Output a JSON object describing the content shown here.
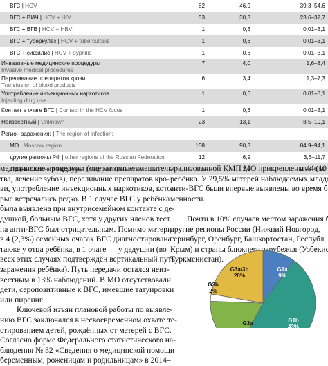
{
  "table": {
    "rows": [
      {
        "ru": "ВГС",
        "en": "HCV",
        "n": "82",
        "p": "46,9",
        "ci": "39,3–54,6",
        "shade": false,
        "indent": true
      },
      {
        "ru": "ВГС + ВИЧ",
        "en": "HCV + HIV",
        "n": "53",
        "p": "30,3",
        "ci": "23,6–37,7",
        "shade": true,
        "indent": true
      },
      {
        "ru": "ВГС + ВГВ",
        "en": "HCV + HBV",
        "n": "1",
        "p": "0,6",
        "ci": "0,01–3,1",
        "shade": false,
        "indent": true
      },
      {
        "ru": "ВГС + туберкулёз",
        "en": "HCV + tuberculosis",
        "n": "1",
        "p": "0,6",
        "ci": "0,01–3,1",
        "shade": true,
        "indent": true
      },
      {
        "ru": "ВГС + сифилис",
        "en": "HCV + syphilis",
        "n": "1",
        "p": "0,6",
        "ci": "0,01–3,1",
        "shade": false,
        "indent": true
      },
      {
        "ru": "Инвазивные медицинские процедуры",
        "en": "Invasive medical procedures",
        "n": "7",
        "p": "4,0",
        "ci": "1,6–8,4",
        "shade": true,
        "indent": false,
        "two": true
      },
      {
        "ru": "Переливание препаратов крови",
        "en": "Transfusion of blood products",
        "n": "6",
        "p": "3,4",
        "ci": "1,3–7,3",
        "shade": false,
        "indent": false,
        "two": true
      },
      {
        "ru": "Употребление инъекционных наркотиков",
        "en": "Injecting drug use",
        "n": "1",
        "p": "0,6",
        "ci": "0,01–3,1",
        "shade": true,
        "indent": false,
        "two": true
      },
      {
        "ru": "Контакт в очаге ВГС",
        "en": "Contact in the HCV focus",
        "n": "1",
        "p": "0,6",
        "ci": "0,01–3,1",
        "shade": false,
        "indent": false
      },
      {
        "ru": "Неизвестный",
        "en": "Unknown",
        "n": "23",
        "p": "13,1",
        "ci": "8,5–19,1",
        "shade": true,
        "indent": false
      },
      {
        "ru": "Регион заражения:",
        "en": "The region of infection:",
        "n": "",
        "p": "",
        "ci": "",
        "shade": false,
        "indent": false
      },
      {
        "ru": "МО",
        "en": "Moscow region",
        "n": "158",
        "p": "90,3",
        "ci": "84,9–94,1",
        "shade": true,
        "indent": true
      },
      {
        "ru": "другие регионы РФ",
        "en": "other regions of the Russian Federation",
        "n": "12",
        "p": "6,9",
        "ci": "3,6–11,7",
        "shade": false,
        "indent": true
      },
      {
        "ru": "страны ближнего зарубежья",
        "en": "neighboring countries",
        "n": "5",
        "p": "2,9",
        "ci": "0,93–6,50",
        "shade": true,
        "indent": true
      }
    ]
  },
  "left_text": [
    "медицинские процедуры (оперативные вмешатель-",
    "тва, лечение зубов), переливание препаратов кро-",
    "ви, употребление инъекционных наркотиков, кото-",
    "рые встречались редко. В 1 случае ВГС у ребёнка",
    "была выявлена при внутрисемейном контакте с де-",
    "душкой, больным ВГС, хотя у других членов тест",
    "на анти-ВГС был отрицательным. Помимо матери",
    "в 4 (2,3%) семейных очагах ВГС диагностирована",
    "также у отца ребёнка, в 1 очаге — у дедушки (во",
    "всех этих случаях подтверждён вертикальный путь",
    "заражения ребёнка). Путь передачи остался неиз-",
    "вестным в 13% наблюдений. В МО отсутствовали",
    "дети, серопозитивные к ВГС, имевшие татуировки",
    "или пирсинг.",
    "Ключевой изъян плановой работы по выявле-",
    "нию ВГС заключался в несвоевременном охвате те-",
    "стированием детей, рождённых от матерей с ВГС.",
    "Согласно форме Федерального статистического на-",
    "блюдения № 32 «Сведения о медицинской помощи",
    "беременным, роженицам и родильницам» в 2014–"
  ],
  "right_text": [
    "трализованной КМП МО прикреплены 44 (10",
    "ребёнка. У 29,5% матерей наблюдаемых младен",
    "анти-ВГС были впервые выявлены во время бе",
    "менности.",
    "",
    "Почти в 10% случаев местом заражения бы",
    "другие регионы России (Нижний Новгород,",
    "теринбург, Оренбург, Башкортостан, Республ",
    "Крым) и страны ближнего зарубежья (Узбекист",
    "Туркменистан)."
  ],
  "chart_data": {
    "type": "pie",
    "slices": [
      {
        "label": "G1a",
        "value_label": "9%",
        "value": 9,
        "color": "#4b7fc0"
      },
      {
        "label": "G1b",
        "value_label": "43%",
        "value": 43,
        "color": "#2f9a88"
      },
      {
        "label": "G3a",
        "value_label": "",
        "value": 16,
        "color": "#82b44a"
      },
      {
        "label": "G3b",
        "value_label": "2%",
        "value": 2,
        "color": "#ffffff"
      },
      {
        "label": "G3a/3b",
        "value_label": "20%",
        "value": 20,
        "color": "#e2ba43"
      }
    ]
  }
}
